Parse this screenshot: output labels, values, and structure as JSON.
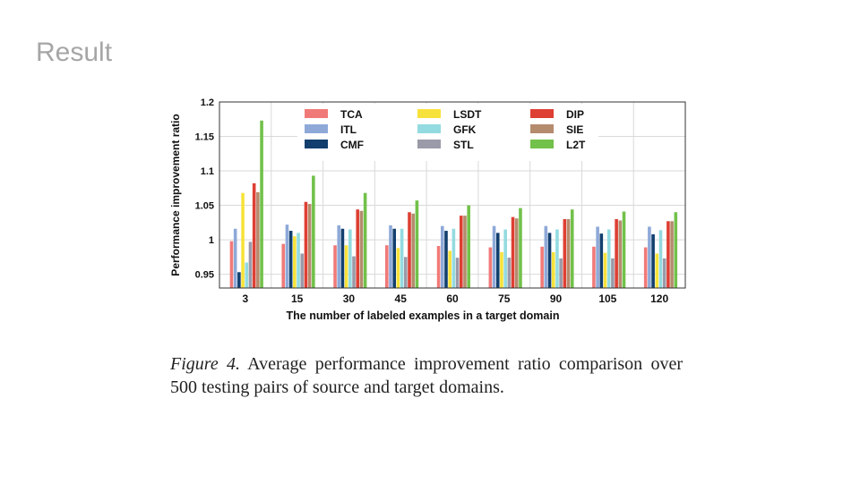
{
  "slide": {
    "title": "Result"
  },
  "caption": {
    "label": "Figure 4.",
    "text": "Average performance improvement ratio comparison over 500 testing pairs of source and target domains."
  },
  "colors": {
    "TCA": "#f07a78",
    "ITL": "#8ea9d8",
    "CMF": "#123f6e",
    "LSDT": "#f7e23b",
    "GFK": "#93dbe0",
    "STL": "#9a9aa8",
    "DIP": "#de3f33",
    "SIE": "#b58b6e",
    "L2T": "#72c14a"
  },
  "chart_data": {
    "type": "bar",
    "title": "",
    "xlabel": "The number of labeled examples in a target domain",
    "ylabel": "Performance improvement ratio",
    "ylim": [
      0.93,
      1.2
    ],
    "yticks": [
      "0.95",
      "1",
      "1.05",
      "1.1",
      "1.15",
      "1.2"
    ],
    "grid": true,
    "legend_position": "top",
    "categories": [
      "3",
      "15",
      "30",
      "45",
      "60",
      "75",
      "90",
      "105",
      "120"
    ],
    "series": [
      {
        "name": "TCA",
        "values": [
          0.998,
          0.994,
          0.992,
          0.992,
          0.991,
          0.989,
          0.99,
          0.99,
          0.989
        ]
      },
      {
        "name": "ITL",
        "values": [
          1.016,
          1.022,
          1.021,
          1.021,
          1.02,
          1.02,
          1.02,
          1.019,
          1.019
        ]
      },
      {
        "name": "CMF",
        "values": [
          0.953,
          1.013,
          1.016,
          1.016,
          1.013,
          1.01,
          1.01,
          1.009,
          1.008
        ]
      },
      {
        "name": "LSDT",
        "values": [
          1.068,
          1.005,
          0.992,
          0.988,
          0.984,
          0.982,
          0.982,
          0.981,
          0.98
        ]
      },
      {
        "name": "GFK",
        "values": [
          0.967,
          1.01,
          1.015,
          1.016,
          1.016,
          1.015,
          1.015,
          1.015,
          1.014
        ]
      },
      {
        "name": "STL",
        "values": [
          0.997,
          0.98,
          0.976,
          0.975,
          0.974,
          0.974,
          0.973,
          0.973,
          0.973
        ]
      },
      {
        "name": "DIP",
        "values": [
          1.082,
          1.055,
          1.044,
          1.04,
          1.035,
          1.033,
          1.03,
          1.03,
          1.027
        ]
      },
      {
        "name": "SIE",
        "values": [
          1.069,
          1.052,
          1.042,
          1.038,
          1.035,
          1.031,
          1.03,
          1.028,
          1.027
        ]
      },
      {
        "name": "L2T",
        "values": [
          1.173,
          1.093,
          1.068,
          1.057,
          1.05,
          1.046,
          1.044,
          1.041,
          1.04
        ]
      }
    ]
  }
}
